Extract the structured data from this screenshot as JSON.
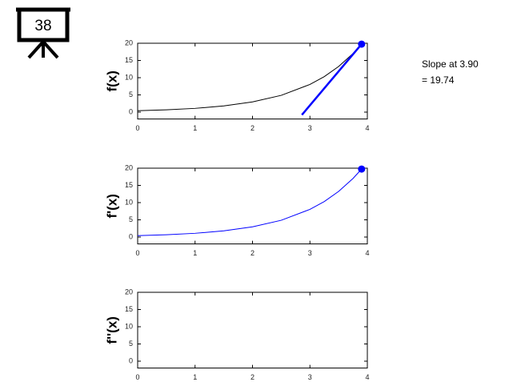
{
  "badge": "38",
  "chart_data": [
    {
      "type": "line",
      "ylabel": "f(x)",
      "xlim": [
        0,
        4
      ],
      "ylim": [
        -2,
        20
      ],
      "xticks": [
        0,
        1,
        2,
        3,
        4
      ],
      "yticks": [
        0,
        5,
        10,
        15,
        20
      ],
      "annotation": [
        "Slope at 3.90",
        "= 19.74"
      ],
      "series": [
        {
          "color": "#000000",
          "style": "line",
          "width": 1,
          "x": [
            0,
            0.5,
            1,
            1.5,
            2,
            2.5,
            3,
            3.25,
            3.5,
            3.75,
            3.9
          ],
          "values": [
            0.4,
            0.66,
            1.09,
            1.79,
            2.96,
            4.87,
            8.03,
            10.31,
            13.25,
            17.01,
            19.74
          ]
        },
        {
          "color": "#0000ff",
          "style": "line",
          "width": 2.5,
          "x": [
            2.86,
            3.9
          ],
          "values": [
            -0.8,
            19.74
          ]
        },
        {
          "color": "#0000ff",
          "style": "marker",
          "x": [
            3.9
          ],
          "values": [
            19.74
          ]
        }
      ]
    },
    {
      "type": "line",
      "ylabel": "f'(x)",
      "xlim": [
        0,
        4
      ],
      "ylim": [
        -2,
        20
      ],
      "xticks": [
        0,
        1,
        2,
        3,
        4
      ],
      "yticks": [
        0,
        5,
        10,
        15,
        20
      ],
      "series": [
        {
          "color": "#0000ff",
          "style": "line",
          "width": 1,
          "x": [
            0,
            0.5,
            1,
            1.5,
            2,
            2.5,
            3,
            3.25,
            3.5,
            3.75,
            3.9
          ],
          "values": [
            0.4,
            0.66,
            1.09,
            1.79,
            2.96,
            4.87,
            8.03,
            10.31,
            13.25,
            17.01,
            19.74
          ]
        },
        {
          "color": "#0000ff",
          "style": "marker",
          "x": [
            3.9
          ],
          "values": [
            19.74
          ]
        }
      ]
    },
    {
      "type": "line",
      "ylabel": "f''(x)",
      "xlim": [
        0,
        4
      ],
      "ylim": [
        -2,
        20
      ],
      "xticks": [
        0,
        1,
        2,
        3,
        4
      ],
      "yticks": [
        0,
        5,
        10,
        15,
        20
      ],
      "series": []
    }
  ]
}
